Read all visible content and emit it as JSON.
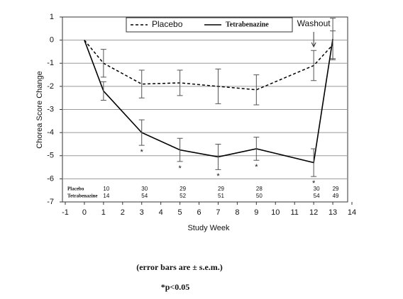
{
  "chart_data": {
    "type": "line",
    "y_label": "Chorea Score Change",
    "x_label": "Study Week",
    "x": [
      0,
      1,
      3,
      5,
      7,
      9,
      12,
      13
    ],
    "series": [
      {
        "name": "Placebo",
        "color": "#000000",
        "dash": true,
        "values": [
          0,
          -1.0,
          -1.9,
          -1.85,
          -2.0,
          -2.15,
          -1.1,
          -0.2
        ],
        "errors": [
          null,
          0.6,
          0.6,
          0.55,
          0.75,
          0.65,
          0.65,
          0.6
        ]
      },
      {
        "name": "Tetrabenazine",
        "color": "#000000",
        "dash": false,
        "values": [
          0,
          -2.2,
          -4.0,
          -4.75,
          -5.05,
          -4.7,
          -5.3,
          0.05
        ],
        "errors": [
          null,
          0.4,
          0.55,
          0.5,
          0.55,
          0.5,
          0.6,
          0.9
        ]
      }
    ],
    "xlim": [
      -1,
      14
    ],
    "xticks": [
      -1,
      0,
      1,
      2,
      3,
      4,
      5,
      6,
      7,
      8,
      9,
      10,
      11,
      12,
      13,
      14
    ],
    "ylim": [
      -7,
      1
    ],
    "yticks": [
      1,
      0,
      -1,
      -2,
      -3,
      -4,
      -5,
      -6,
      -7
    ],
    "grid": true,
    "annotations": {
      "washout": {
        "text": "Washout",
        "x": 12
      },
      "significance": {
        "text": "*",
        "x": [
          3,
          5,
          7,
          9,
          12
        ]
      }
    },
    "counts": {
      "x": [
        1,
        3,
        5,
        7,
        9,
        12,
        13
      ],
      "rows": [
        {
          "name": "Placebo",
          "values": [
            10,
            30,
            29,
            29,
            28,
            30,
            29
          ]
        },
        {
          "name": "Tetrabenazine",
          "values": [
            14,
            54,
            52,
            51,
            50,
            54,
            49
          ]
        }
      ]
    },
    "footnotes": [
      "(error bars are ± s.e.m.)",
      "*p<0.05"
    ]
  }
}
